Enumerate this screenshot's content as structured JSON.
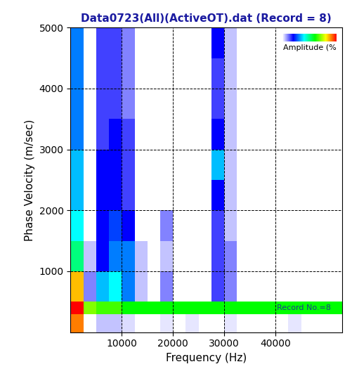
{
  "chart_data": {
    "type": "heatmap",
    "title": "Data0723(All)(ActiveOT).dat (Record = 8)",
    "x_label": "Frequency (Hz)",
    "y_label": "Phase Velocity (m/sec)",
    "xlim": [
      0,
      53000
    ],
    "ylim": [
      0,
      5000
    ],
    "xticks": [
      10000,
      20000,
      30000,
      40000
    ],
    "yticks": [
      1000,
      2000,
      3000,
      4000,
      5000
    ],
    "grid": true,
    "x_edges": [
      0,
      2500,
      5000,
      7500,
      10000,
      12500,
      15000,
      17500,
      20000,
      22500,
      25000,
      27500,
      30000,
      32500,
      35000,
      37500,
      40000,
      42500,
      45000,
      47500,
      50000,
      53000
    ],
    "y_edges": [
      0,
      300,
      500,
      1000,
      1500,
      2000,
      2500,
      3000,
      3500,
      4000,
      4500,
      5000
    ],
    "cells": [
      [
        90,
        0,
        5,
        5,
        3,
        0,
        0,
        2,
        0,
        2,
        0,
        0,
        2,
        0,
        0,
        0,
        0,
        2,
        0,
        0,
        0
      ],
      [
        100,
        70,
        65,
        65,
        60,
        60,
        60,
        60,
        60,
        60,
        60,
        60,
        60,
        60,
        60,
        60,
        60,
        60,
        60,
        60,
        60
      ],
      [
        85,
        10,
        35,
        40,
        30,
        5,
        0,
        10,
        0,
        0,
        0,
        15,
        10,
        0,
        0,
        0,
        0,
        0,
        0,
        0,
        0
      ],
      [
        50,
        5,
        20,
        30,
        30,
        5,
        0,
        5,
        0,
        0,
        0,
        15,
        10,
        0,
        0,
        0,
        0,
        0,
        0,
        0,
        0
      ],
      [
        40,
        0,
        20,
        25,
        20,
        0,
        0,
        10,
        0,
        0,
        0,
        15,
        5,
        0,
        0,
        0,
        0,
        0,
        0,
        0,
        0
      ],
      [
        35,
        0,
        20,
        20,
        15,
        0,
        0,
        0,
        0,
        0,
        0,
        20,
        5,
        0,
        0,
        0,
        0,
        0,
        0,
        0,
        0
      ],
      [
        35,
        0,
        20,
        20,
        15,
        0,
        0,
        0,
        0,
        0,
        0,
        35,
        5,
        0,
        0,
        0,
        0,
        0,
        0,
        0,
        0
      ],
      [
        30,
        0,
        15,
        20,
        15,
        0,
        0,
        0,
        0,
        0,
        0,
        20,
        5,
        0,
        0,
        0,
        0,
        0,
        0,
        0,
        0
      ],
      [
        30,
        0,
        15,
        15,
        10,
        0,
        0,
        0,
        0,
        0,
        0,
        15,
        5,
        0,
        0,
        0,
        0,
        0,
        0,
        0,
        0
      ],
      [
        30,
        0,
        15,
        15,
        10,
        0,
        0,
        0,
        0,
        0,
        0,
        15,
        5,
        0,
        0,
        0,
        0,
        0,
        0,
        0,
        0
      ],
      [
        30,
        0,
        15,
        15,
        10,
        0,
        0,
        0,
        0,
        0,
        0,
        20,
        5,
        0,
        0,
        0,
        0,
        0,
        0,
        0,
        0
      ]
    ],
    "colorbar_label": "Amplitude (%",
    "colorbar_range": [
      0,
      100
    ],
    "annotations": [
      "Record No.=8"
    ]
  }
}
